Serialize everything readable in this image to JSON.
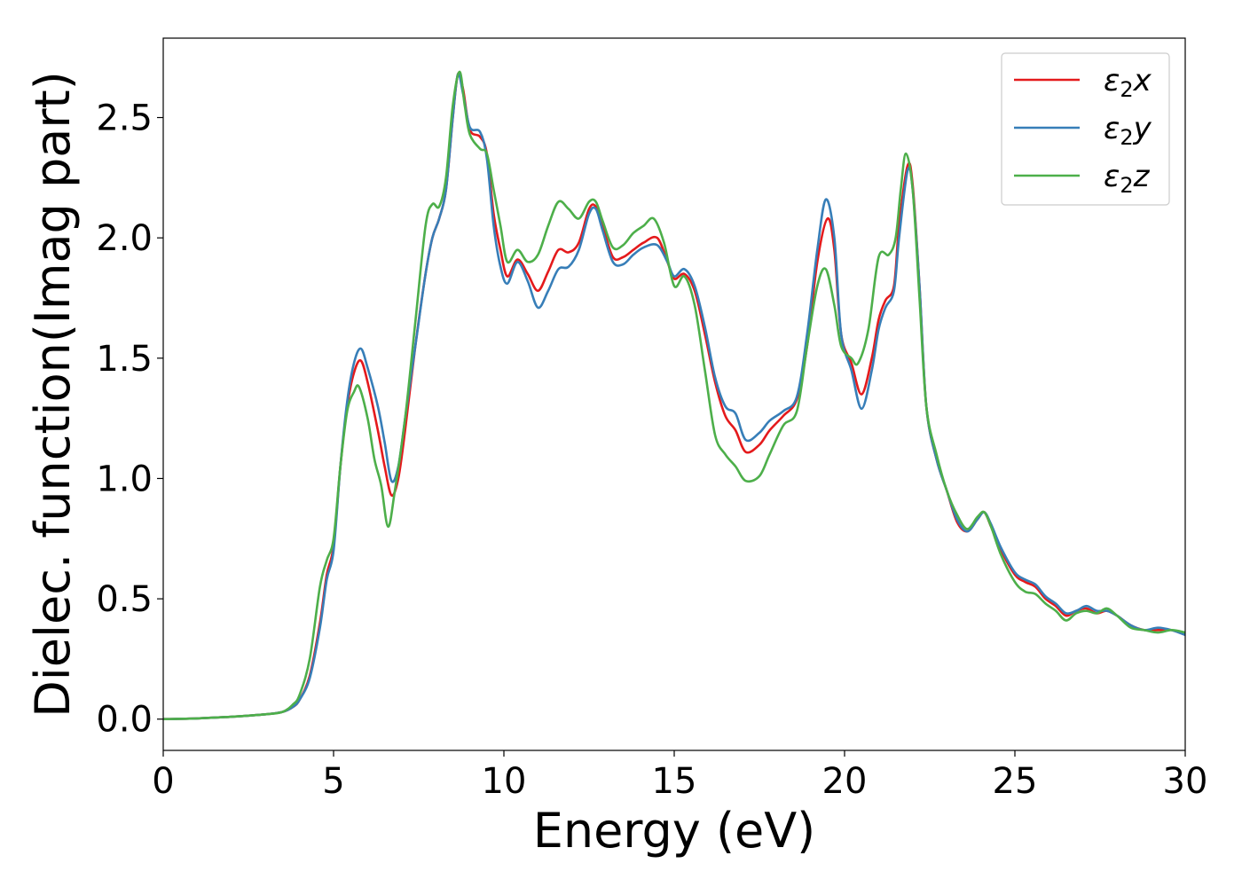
{
  "chart_data": {
    "type": "line",
    "xlabel": "Energy (eV)",
    "ylabel": "Dielec. function(Imag part)",
    "xlim": [
      0,
      30
    ],
    "ylim": [
      -0.13,
      2.83
    ],
    "xticks": [
      0,
      5,
      10,
      15,
      20,
      25,
      30
    ],
    "xtick_labels": [
      "0",
      "5",
      "10",
      "15",
      "20",
      "25",
      "30"
    ],
    "yticks": [
      0.0,
      0.5,
      1.0,
      1.5,
      2.0,
      2.5
    ],
    "ytick_labels": [
      "0.0",
      "0.5",
      "1.0",
      "1.5",
      "2.0",
      "2.5"
    ],
    "grid": false,
    "legend_position": "top-right",
    "series": [
      {
        "name": "ε2x",
        "legend_base": "ε",
        "legend_sub": "2",
        "legend_suffix": "x",
        "color": "#e41a1c",
        "points": [
          [
            0,
            0.0
          ],
          [
            1,
            0.003
          ],
          [
            2,
            0.01
          ],
          [
            3,
            0.02
          ],
          [
            3.5,
            0.03
          ],
          [
            3.8,
            0.05
          ],
          [
            4.0,
            0.08
          ],
          [
            4.3,
            0.18
          ],
          [
            4.6,
            0.4
          ],
          [
            4.8,
            0.6
          ],
          [
            5.0,
            0.72
          ],
          [
            5.2,
            1.05
          ],
          [
            5.4,
            1.3
          ],
          [
            5.6,
            1.44
          ],
          [
            5.8,
            1.49
          ],
          [
            6.0,
            1.4
          ],
          [
            6.3,
            1.2
          ],
          [
            6.5,
            1.05
          ],
          [
            6.7,
            0.93
          ],
          [
            6.9,
            1.0
          ],
          [
            7.1,
            1.2
          ],
          [
            7.4,
            1.55
          ],
          [
            7.7,
            1.85
          ],
          [
            7.9,
            2.0
          ],
          [
            8.1,
            2.08
          ],
          [
            8.3,
            2.2
          ],
          [
            8.5,
            2.5
          ],
          [
            8.65,
            2.68
          ],
          [
            8.8,
            2.62
          ],
          [
            9.0,
            2.45
          ],
          [
            9.3,
            2.42
          ],
          [
            9.5,
            2.35
          ],
          [
            9.7,
            2.1
          ],
          [
            9.9,
            1.95
          ],
          [
            10.1,
            1.84
          ],
          [
            10.4,
            1.91
          ],
          [
            10.7,
            1.85
          ],
          [
            11.0,
            1.78
          ],
          [
            11.3,
            1.86
          ],
          [
            11.6,
            1.95
          ],
          [
            11.9,
            1.94
          ],
          [
            12.2,
            1.98
          ],
          [
            12.5,
            2.12
          ],
          [
            12.7,
            2.13
          ],
          [
            12.9,
            2.05
          ],
          [
            13.2,
            1.92
          ],
          [
            13.5,
            1.92
          ],
          [
            13.8,
            1.95
          ],
          [
            14.1,
            1.98
          ],
          [
            14.5,
            2.0
          ],
          [
            14.8,
            1.9
          ],
          [
            15.0,
            1.83
          ],
          [
            15.3,
            1.85
          ],
          [
            15.6,
            1.78
          ],
          [
            15.9,
            1.6
          ],
          [
            16.2,
            1.4
          ],
          [
            16.5,
            1.26
          ],
          [
            16.8,
            1.2
          ],
          [
            17.1,
            1.11
          ],
          [
            17.5,
            1.14
          ],
          [
            17.8,
            1.2
          ],
          [
            18.2,
            1.26
          ],
          [
            18.6,
            1.33
          ],
          [
            18.9,
            1.55
          ],
          [
            19.2,
            1.9
          ],
          [
            19.5,
            2.08
          ],
          [
            19.7,
            1.95
          ],
          [
            19.9,
            1.6
          ],
          [
            20.2,
            1.48
          ],
          [
            20.5,
            1.35
          ],
          [
            20.8,
            1.5
          ],
          [
            21.0,
            1.66
          ],
          [
            21.2,
            1.74
          ],
          [
            21.45,
            1.8
          ],
          [
            21.6,
            2.05
          ],
          [
            21.85,
            2.3
          ],
          [
            22.0,
            2.22
          ],
          [
            22.2,
            1.8
          ],
          [
            22.4,
            1.3
          ],
          [
            22.7,
            1.08
          ],
          [
            23.0,
            0.95
          ],
          [
            23.3,
            0.82
          ],
          [
            23.6,
            0.78
          ],
          [
            23.9,
            0.83
          ],
          [
            24.1,
            0.86
          ],
          [
            24.3,
            0.8
          ],
          [
            24.6,
            0.7
          ],
          [
            25.0,
            0.6
          ],
          [
            25.3,
            0.57
          ],
          [
            25.6,
            0.55
          ],
          [
            25.9,
            0.5
          ],
          [
            26.2,
            0.47
          ],
          [
            26.5,
            0.43
          ],
          [
            26.8,
            0.45
          ],
          [
            27.1,
            0.46
          ],
          [
            27.4,
            0.44
          ],
          [
            27.7,
            0.45
          ],
          [
            28.0,
            0.43
          ],
          [
            28.4,
            0.39
          ],
          [
            28.8,
            0.37
          ],
          [
            29.2,
            0.37
          ],
          [
            29.6,
            0.37
          ],
          [
            30,
            0.35
          ]
        ]
      },
      {
        "name": "ε2y",
        "legend_base": "ε",
        "legend_sub": "2",
        "legend_suffix": "y",
        "color": "#377eb8",
        "points": [
          [
            0,
            0.0
          ],
          [
            1,
            0.003
          ],
          [
            2,
            0.01
          ],
          [
            3,
            0.02
          ],
          [
            3.5,
            0.03
          ],
          [
            3.8,
            0.05
          ],
          [
            4.0,
            0.08
          ],
          [
            4.3,
            0.17
          ],
          [
            4.6,
            0.38
          ],
          [
            4.8,
            0.58
          ],
          [
            5.0,
            0.7
          ],
          [
            5.2,
            1.05
          ],
          [
            5.4,
            1.32
          ],
          [
            5.6,
            1.48
          ],
          [
            5.8,
            1.54
          ],
          [
            6.0,
            1.46
          ],
          [
            6.3,
            1.3
          ],
          [
            6.5,
            1.15
          ],
          [
            6.7,
            0.99
          ],
          [
            6.9,
            1.05
          ],
          [
            7.1,
            1.25
          ],
          [
            7.4,
            1.55
          ],
          [
            7.7,
            1.85
          ],
          [
            7.9,
            2.0
          ],
          [
            8.1,
            2.08
          ],
          [
            8.3,
            2.2
          ],
          [
            8.5,
            2.5
          ],
          [
            8.65,
            2.68
          ],
          [
            8.8,
            2.6
          ],
          [
            9.0,
            2.46
          ],
          [
            9.3,
            2.44
          ],
          [
            9.5,
            2.33
          ],
          [
            9.7,
            2.05
          ],
          [
            9.9,
            1.88
          ],
          [
            10.1,
            1.81
          ],
          [
            10.4,
            1.9
          ],
          [
            10.7,
            1.82
          ],
          [
            11.0,
            1.71
          ],
          [
            11.3,
            1.78
          ],
          [
            11.6,
            1.87
          ],
          [
            11.9,
            1.88
          ],
          [
            12.2,
            1.95
          ],
          [
            12.5,
            2.1
          ],
          [
            12.7,
            2.12
          ],
          [
            12.9,
            2.03
          ],
          [
            13.2,
            1.9
          ],
          [
            13.5,
            1.89
          ],
          [
            13.8,
            1.93
          ],
          [
            14.1,
            1.96
          ],
          [
            14.5,
            1.97
          ],
          [
            14.8,
            1.9
          ],
          [
            15.0,
            1.84
          ],
          [
            15.3,
            1.87
          ],
          [
            15.6,
            1.8
          ],
          [
            15.9,
            1.63
          ],
          [
            16.2,
            1.42
          ],
          [
            16.5,
            1.3
          ],
          [
            16.8,
            1.27
          ],
          [
            17.1,
            1.16
          ],
          [
            17.5,
            1.19
          ],
          [
            17.8,
            1.24
          ],
          [
            18.2,
            1.28
          ],
          [
            18.6,
            1.34
          ],
          [
            18.9,
            1.6
          ],
          [
            19.2,
            1.95
          ],
          [
            19.45,
            2.16
          ],
          [
            19.7,
            2.0
          ],
          [
            19.9,
            1.6
          ],
          [
            20.2,
            1.45
          ],
          [
            20.5,
            1.29
          ],
          [
            20.8,
            1.45
          ],
          [
            21.0,
            1.62
          ],
          [
            21.2,
            1.71
          ],
          [
            21.45,
            1.78
          ],
          [
            21.6,
            2.0
          ],
          [
            21.85,
            2.28
          ],
          [
            22.0,
            2.2
          ],
          [
            22.2,
            1.8
          ],
          [
            22.4,
            1.3
          ],
          [
            22.7,
            1.08
          ],
          [
            23.0,
            0.95
          ],
          [
            23.3,
            0.83
          ],
          [
            23.6,
            0.78
          ],
          [
            23.9,
            0.83
          ],
          [
            24.1,
            0.86
          ],
          [
            24.3,
            0.81
          ],
          [
            24.6,
            0.71
          ],
          [
            25.0,
            0.61
          ],
          [
            25.3,
            0.58
          ],
          [
            25.6,
            0.56
          ],
          [
            25.9,
            0.51
          ],
          [
            26.2,
            0.48
          ],
          [
            26.5,
            0.44
          ],
          [
            26.8,
            0.45
          ],
          [
            27.1,
            0.47
          ],
          [
            27.4,
            0.45
          ],
          [
            27.7,
            0.45
          ],
          [
            28.0,
            0.43
          ],
          [
            28.4,
            0.39
          ],
          [
            28.8,
            0.37
          ],
          [
            29.2,
            0.38
          ],
          [
            29.6,
            0.37
          ],
          [
            30,
            0.35
          ]
        ]
      },
      {
        "name": "ε2z",
        "legend_base": "ε",
        "legend_sub": "2",
        "legend_suffix": "z",
        "color": "#4daf4a",
        "points": [
          [
            0,
            0.0
          ],
          [
            1,
            0.003
          ],
          [
            2,
            0.01
          ],
          [
            3,
            0.02
          ],
          [
            3.5,
            0.03
          ],
          [
            3.8,
            0.06
          ],
          [
            4.0,
            0.1
          ],
          [
            4.3,
            0.25
          ],
          [
            4.6,
            0.55
          ],
          [
            4.8,
            0.66
          ],
          [
            5.0,
            0.75
          ],
          [
            5.2,
            1.05
          ],
          [
            5.4,
            1.28
          ],
          [
            5.6,
            1.36
          ],
          [
            5.75,
            1.38
          ],
          [
            6.0,
            1.25
          ],
          [
            6.2,
            1.08
          ],
          [
            6.4,
            0.97
          ],
          [
            6.6,
            0.8
          ],
          [
            6.8,
            0.95
          ],
          [
            7.1,
            1.25
          ],
          [
            7.4,
            1.65
          ],
          [
            7.7,
            2.05
          ],
          [
            7.9,
            2.14
          ],
          [
            8.1,
            2.13
          ],
          [
            8.3,
            2.25
          ],
          [
            8.5,
            2.55
          ],
          [
            8.7,
            2.69
          ],
          [
            8.85,
            2.55
          ],
          [
            9.0,
            2.43
          ],
          [
            9.3,
            2.37
          ],
          [
            9.5,
            2.35
          ],
          [
            9.7,
            2.2
          ],
          [
            9.9,
            2.05
          ],
          [
            10.1,
            1.9
          ],
          [
            10.4,
            1.95
          ],
          [
            10.7,
            1.9
          ],
          [
            11.0,
            1.93
          ],
          [
            11.3,
            2.05
          ],
          [
            11.6,
            2.15
          ],
          [
            11.9,
            2.12
          ],
          [
            12.2,
            2.08
          ],
          [
            12.5,
            2.15
          ],
          [
            12.7,
            2.15
          ],
          [
            12.9,
            2.07
          ],
          [
            13.2,
            1.96
          ],
          [
            13.5,
            1.97
          ],
          [
            13.8,
            2.02
          ],
          [
            14.1,
            2.05
          ],
          [
            14.4,
            2.08
          ],
          [
            14.7,
            1.98
          ],
          [
            15.0,
            1.8
          ],
          [
            15.3,
            1.84
          ],
          [
            15.6,
            1.72
          ],
          [
            15.9,
            1.45
          ],
          [
            16.2,
            1.18
          ],
          [
            16.5,
            1.1
          ],
          [
            16.8,
            1.05
          ],
          [
            17.1,
            0.99
          ],
          [
            17.5,
            1.01
          ],
          [
            17.8,
            1.1
          ],
          [
            18.2,
            1.22
          ],
          [
            18.6,
            1.28
          ],
          [
            18.9,
            1.55
          ],
          [
            19.2,
            1.8
          ],
          [
            19.45,
            1.87
          ],
          [
            19.7,
            1.72
          ],
          [
            19.9,
            1.55
          ],
          [
            20.2,
            1.5
          ],
          [
            20.4,
            1.48
          ],
          [
            20.7,
            1.62
          ],
          [
            21.0,
            1.92
          ],
          [
            21.3,
            1.93
          ],
          [
            21.5,
            2.0
          ],
          [
            21.65,
            2.2
          ],
          [
            21.8,
            2.35
          ],
          [
            22.0,
            2.2
          ],
          [
            22.2,
            1.75
          ],
          [
            22.4,
            1.3
          ],
          [
            22.7,
            1.1
          ],
          [
            23.0,
            0.95
          ],
          [
            23.3,
            0.85
          ],
          [
            23.6,
            0.79
          ],
          [
            23.9,
            0.84
          ],
          [
            24.1,
            0.86
          ],
          [
            24.3,
            0.8
          ],
          [
            24.6,
            0.68
          ],
          [
            25.0,
            0.57
          ],
          [
            25.3,
            0.53
          ],
          [
            25.6,
            0.52
          ],
          [
            25.9,
            0.48
          ],
          [
            26.2,
            0.45
          ],
          [
            26.5,
            0.41
          ],
          [
            26.8,
            0.44
          ],
          [
            27.1,
            0.45
          ],
          [
            27.4,
            0.44
          ],
          [
            27.7,
            0.46
          ],
          [
            28.0,
            0.43
          ],
          [
            28.4,
            0.38
          ],
          [
            28.8,
            0.37
          ],
          [
            29.2,
            0.36
          ],
          [
            29.6,
            0.37
          ],
          [
            30,
            0.36
          ]
        ]
      }
    ]
  }
}
